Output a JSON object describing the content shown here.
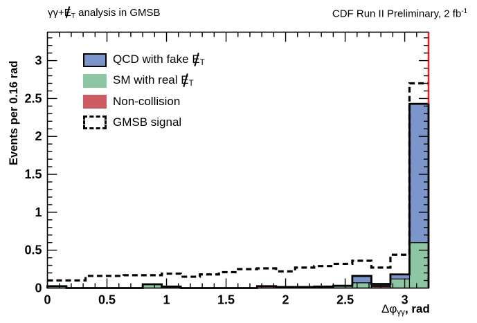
{
  "titles": {
    "left": [
      {
        "t": "γγ+"
      },
      {
        "t": "E",
        "s": "met"
      },
      {
        "t": "T",
        "s": "sub"
      },
      {
        "t": " analysis in GMSB"
      }
    ],
    "right": [
      {
        "t": "CDF Run II Preliminary, 2 fb"
      },
      {
        "t": "-1",
        "s": "sup"
      }
    ]
  },
  "axes": {
    "y_title": "Events per 0.16 rad",
    "x_title": [
      {
        "t": "Δφ"
      },
      {
        "t": "γγ",
        "s": "sub"
      },
      {
        "t": ", rad",
        "s": "bold"
      }
    ]
  },
  "legend": [
    {
      "swatch": "qcd",
      "label": [
        {
          "t": "QCD with fake "
        },
        {
          "t": "E",
          "s": "met"
        },
        {
          "t": "T",
          "s": "sub"
        }
      ]
    },
    {
      "swatch": "sm",
      "label": [
        {
          "t": "SM with real "
        },
        {
          "t": "E",
          "s": "met"
        },
        {
          "t": "T",
          "s": "sub"
        }
      ]
    },
    {
      "swatch": "noncol",
      "label": [
        {
          "t": "Non-collision"
        }
      ]
    },
    {
      "swatch": "gmsb",
      "label": [
        {
          "t": "GMSB signal"
        }
      ]
    }
  ],
  "chart_data": {
    "type": "bar",
    "subtype": "stacked-histogram-with-signal-outline",
    "bin_start": 0,
    "bin_width": 0.16,
    "n_bins": 20,
    "x_range": [
      0,
      3.2
    ],
    "y_range": [
      0,
      3.375
    ],
    "x_minor_step": 0.1,
    "y_minor_step": 0.1,
    "grid": "off",
    "legend_position": "top-left-inside",
    "xlabel": "Δφ_γγ, rad",
    "ylabel": "Events per 0.16 rad",
    "x_ticks": [
      {
        "v": 0,
        "label": "0"
      },
      {
        "v": 0.5,
        "label": "0.5"
      },
      {
        "v": 1,
        "label": "1"
      },
      {
        "v": 1.5,
        "label": "1.5"
      },
      {
        "v": 2,
        "label": "2"
      },
      {
        "v": 2.5,
        "label": "2.5"
      },
      {
        "v": 3,
        "label": "3"
      }
    ],
    "y_ticks": [
      {
        "v": 0,
        "label": "0"
      },
      {
        "v": 0.5,
        "label": "0.5"
      },
      {
        "v": 1,
        "label": "1"
      },
      {
        "v": 1.5,
        "label": "1.5"
      },
      {
        "v": 2,
        "label": "2"
      },
      {
        "v": 2.5,
        "label": "2.5"
      },
      {
        "v": 3,
        "label": "3"
      }
    ],
    "series": [
      {
        "name": "Non-collision",
        "color": "#cd5c63",
        "values": [
          0,
          0,
          0,
          0,
          0,
          0,
          0,
          0,
          0,
          0,
          0,
          0.025,
          0,
          0,
          0,
          0,
          0,
          0.02,
          0,
          0
        ]
      },
      {
        "name": "SM with real MET",
        "color": "#8cc6a2",
        "values": [
          0.025,
          0,
          0,
          0,
          0,
          0.05,
          0.02,
          0,
          0,
          0,
          0,
          0,
          0.015,
          0.015,
          0.02,
          0.03,
          0.07,
          0.015,
          0.12,
          0.6
        ]
      },
      {
        "name": "QCD with fake MET",
        "color": "#7b94c9",
        "values": [
          0,
          0,
          0,
          0,
          0,
          0,
          0,
          0,
          0,
          0,
          0,
          0,
          0,
          0,
          0,
          0,
          0.09,
          0.02,
          0.06,
          1.83
        ]
      }
    ],
    "signal": {
      "name": "GMSB signal",
      "style": "dashed",
      "color": "#000000",
      "values": [
        0.1,
        0.1,
        0.16,
        0.16,
        0.17,
        0.17,
        0.19,
        0.15,
        0.18,
        0.21,
        0.25,
        0.26,
        0.22,
        0.27,
        0.29,
        0.32,
        0.36,
        0.27,
        0.44,
        2.7
      ]
    },
    "right_edge_line": {
      "color": "#e41e25",
      "y_from": 2.43,
      "y_to": 3.375
    }
  }
}
